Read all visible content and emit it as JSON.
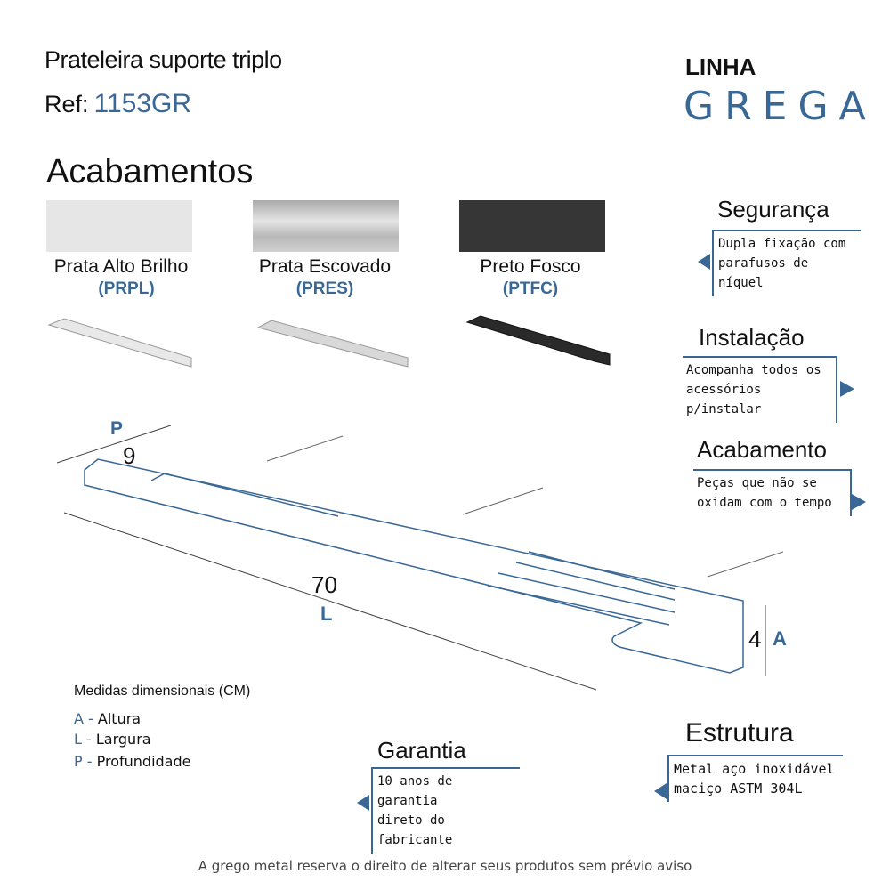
{
  "header": {
    "title": "Prateleira suporte triplo",
    "ref_label": "Ref:",
    "ref_value": "1153GR",
    "line_label": "LINHA",
    "line_name": "GREGA"
  },
  "finishes": {
    "heading": "Acabamentos",
    "items": [
      {
        "name": "Prata Alto Brilho",
        "code": "PRPL",
        "color": "#e6e6e6"
      },
      {
        "name": "Prata Escovado",
        "code": "PRES",
        "color": "#c4c4c4"
      },
      {
        "name": "Preto Fosco",
        "code": "PTFC",
        "color": "#363636"
      }
    ]
  },
  "features": [
    {
      "title": "Segurança",
      "lines": [
        "Dupla fixação com",
        "parafusos de níquel"
      ]
    },
    {
      "title": "Instalação",
      "lines": [
        "Acompanha todos os",
        "acessórios p/instalar"
      ]
    },
    {
      "title": "Acabamento",
      "lines": [
        "Peças que não se",
        "oxidam com o tempo"
      ]
    },
    {
      "title": "Estrutura",
      "lines": [
        "Metal aço inoxidável",
        "maciço  ASTM  304L"
      ]
    },
    {
      "title": "Garantia",
      "lines": [
        "10 anos de garantia",
        "direto do fabricante"
      ]
    }
  ],
  "dimensions": {
    "depth_value": "9",
    "depth_letter": "P",
    "length_value": "70",
    "length_letter": "L",
    "height_value": "4",
    "height_letter": "A"
  },
  "legend": {
    "heading": "Medidas dimensionais (CM)",
    "items": [
      {
        "letter": "A -",
        "label": "Altura"
      },
      {
        "letter": "L -",
        "label": "Largura"
      },
      {
        "letter": "P -",
        "label": "Profundidade"
      }
    ]
  },
  "footer": "A grego metal reserva o direito de alterar seus produtos sem prévio aviso",
  "colors": {
    "accent": "#3a6896"
  }
}
